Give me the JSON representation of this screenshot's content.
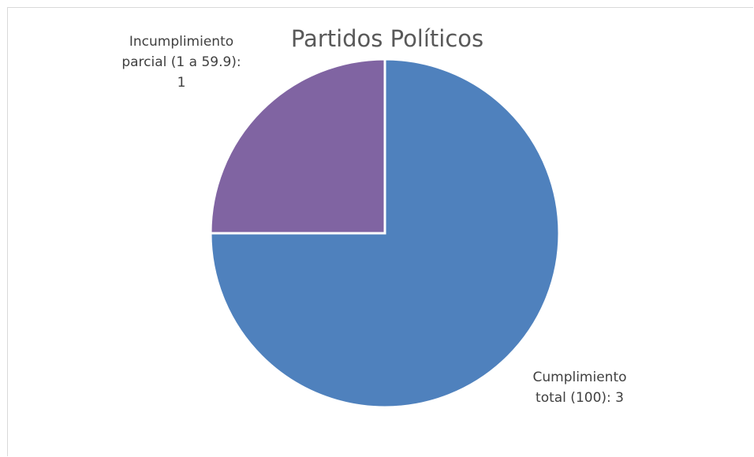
{
  "chart_data": {
    "type": "pie",
    "title": "Partidos Políticos",
    "categories": [
      "Cumplimiento total (100)",
      "Incumplimiento parcial (1 a 59.9)"
    ],
    "values": [
      3,
      1
    ],
    "data_labels": [
      "Cumplimiento\ntotal (100): 3",
      "Incumplimiento\nparcial (1 a 59.9):\n1"
    ],
    "colors": [
      "#4f81bd",
      "#8064a2"
    ],
    "start_angle_deg": 0,
    "direction": "clockwise",
    "legend": "none"
  }
}
